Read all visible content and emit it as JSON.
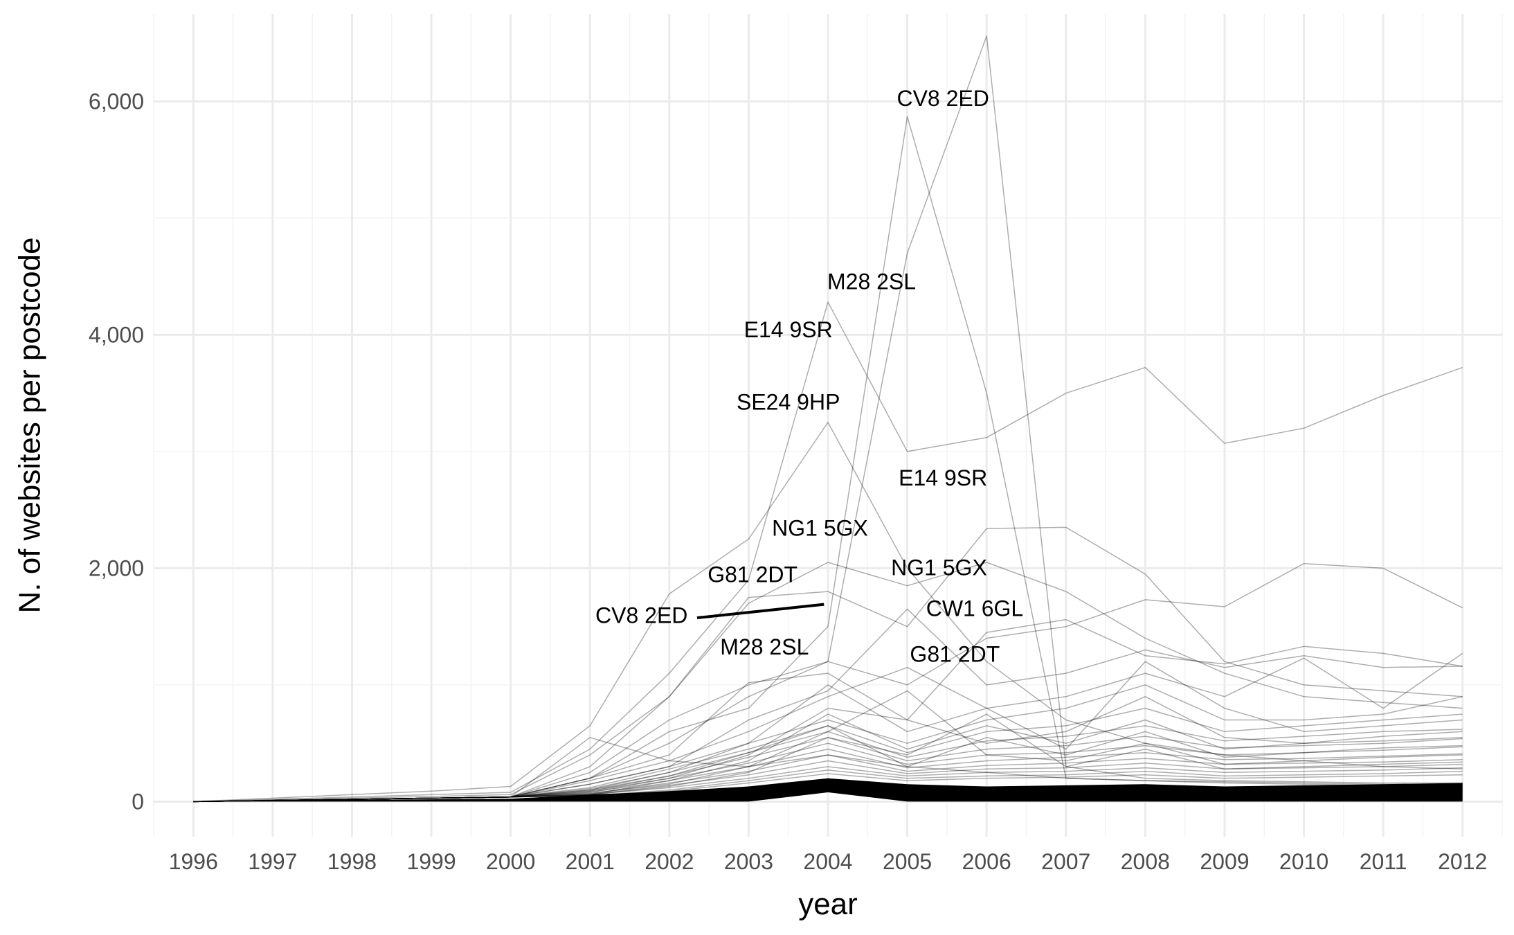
{
  "chart_data": {
    "type": "line",
    "title": "",
    "xlabel": "year",
    "ylabel": "N. of websites per postcode",
    "xlim": [
      1995.5,
      2012.5
    ],
    "ylim": [
      -300,
      6750
    ],
    "x_ticks": [
      1996,
      1997,
      1998,
      1999,
      2000,
      2001,
      2002,
      2003,
      2004,
      2005,
      2006,
      2007,
      2008,
      2009,
      2010,
      2011,
      2012
    ],
    "y_ticks": [
      {
        "value": 0,
        "label": "0"
      },
      {
        "value": 2000,
        "label": "2,000"
      },
      {
        "value": 4000,
        "label": "4,000"
      },
      {
        "value": 6000,
        "label": "6,000"
      }
    ],
    "grid": true,
    "legend": "none",
    "line_color": "#000000",
    "band": {
      "x": [
        1996,
        1997,
        1998,
        1999,
        2000,
        2001,
        2002,
        2003,
        2004,
        2005,
        2006,
        2007,
        2008,
        2009,
        2010,
        2011,
        2012
      ],
      "lower": [
        0,
        0,
        0,
        0,
        0,
        0,
        0,
        0,
        80,
        0,
        0,
        0,
        0,
        0,
        0,
        0,
        0
      ],
      "upper": [
        0,
        10,
        15,
        20,
        25,
        60,
        90,
        130,
        200,
        150,
        130,
        140,
        150,
        130,
        140,
        150,
        160
      ]
    },
    "series": [
      {
        "values": [
          0,
          30,
          60,
          90,
          130,
          650,
          1780,
          2250,
          3250,
          2000,
          1200,
          700,
          500,
          400,
          350,
          300,
          280
        ]
      },
      {
        "values": [
          0,
          20,
          40,
          60,
          80,
          450,
          1100,
          1900,
          4280,
          3000,
          3120,
          3500,
          3720,
          3070,
          3200,
          3480,
          3720
        ]
      },
      {
        "values": [
          0,
          10,
          20,
          30,
          40,
          200,
          600,
          800,
          1500,
          5870,
          3500,
          200,
          180,
          170,
          160,
          150,
          150
        ]
      },
      {
        "values": [
          0,
          10,
          20,
          30,
          40,
          250,
          700,
          1000,
          1200,
          4700,
          6560,
          300,
          200,
          180,
          170,
          160,
          160
        ]
      },
      {
        "values": [
          0,
          15,
          30,
          45,
          60,
          400,
          900,
          1700,
          2050,
          1850,
          2050,
          1800,
          1400,
          1100,
          900,
          850,
          800
        ]
      },
      {
        "values": [
          0,
          10,
          20,
          30,
          40,
          300,
          900,
          1750,
          1800,
          1500,
          2340,
          2350,
          1950,
          1200,
          1000,
          950,
          900
        ]
      },
      {
        "values": [
          0,
          10,
          20,
          30,
          40,
          200,
          500,
          900,
          1200,
          1000,
          1400,
          1500,
          1730,
          1670,
          2040,
          2000,
          1660
        ]
      },
      {
        "values": [
          0,
          10,
          20,
          30,
          40,
          550,
          350,
          300,
          400,
          300,
          250,
          200,
          180,
          160,
          150,
          140,
          130
        ]
      },
      {
        "values": [
          0,
          10,
          20,
          30,
          40,
          150,
          300,
          700,
          950,
          1650,
          1000,
          1100,
          1300,
          1150,
          1250,
          1150,
          1160
        ]
      },
      {
        "values": [
          0,
          10,
          20,
          30,
          40,
          200,
          400,
          1020,
          1100,
          700,
          1450,
          1560,
          1250,
          1180,
          1330,
          1270,
          1160
        ]
      },
      {
        "values": [
          0,
          10,
          20,
          30,
          40,
          180,
          350,
          600,
          900,
          1150,
          800,
          900,
          1100,
          900,
          1230,
          800,
          1270
        ]
      },
      {
        "values": [
          0,
          10,
          20,
          30,
          40,
          150,
          300,
          500,
          700,
          500,
          700,
          800,
          1000,
          700,
          700,
          750,
          900
        ]
      },
      {
        "values": [
          0,
          10,
          20,
          30,
          40,
          120,
          280,
          450,
          650,
          420,
          600,
          650,
          800,
          600,
          650,
          700,
          750
        ]
      },
      {
        "values": [
          0,
          10,
          20,
          30,
          40,
          110,
          250,
          420,
          600,
          380,
          520,
          560,
          650,
          520,
          560,
          600,
          620
        ]
      },
      {
        "values": [
          0,
          10,
          20,
          30,
          40,
          100,
          220,
          380,
          550,
          350,
          450,
          480,
          560,
          460,
          480,
          500,
          540
        ]
      },
      {
        "values": [
          0,
          10,
          20,
          30,
          40,
          90,
          200,
          330,
          500,
          320,
          400,
          420,
          480,
          400,
          420,
          440,
          470
        ]
      },
      {
        "values": [
          0,
          10,
          20,
          30,
          40,
          80,
          180,
          300,
          450,
          290,
          350,
          380,
          420,
          360,
          370,
          390,
          410
        ]
      },
      {
        "values": [
          0,
          10,
          20,
          30,
          40,
          70,
          160,
          260,
          400,
          260,
          310,
          330,
          370,
          320,
          330,
          340,
          360
        ]
      },
      {
        "values": [
          0,
          10,
          20,
          30,
          40,
          60,
          140,
          230,
          350,
          240,
          280,
          290,
          330,
          280,
          290,
          300,
          320
        ]
      },
      {
        "values": [
          0,
          10,
          20,
          30,
          40,
          60,
          120,
          200,
          300,
          220,
          250,
          260,
          290,
          250,
          260,
          270,
          290
        ]
      },
      {
        "values": [
          0,
          10,
          20,
          30,
          40,
          50,
          100,
          180,
          270,
          200,
          220,
          230,
          260,
          220,
          230,
          240,
          260
        ]
      },
      {
        "values": [
          0,
          10,
          20,
          30,
          40,
          50,
          90,
          160,
          240,
          180,
          200,
          210,
          230,
          200,
          210,
          220,
          230
        ]
      },
      {
        "values": [
          0,
          10,
          20,
          30,
          40,
          100,
          250,
          500,
          1000,
          600,
          800,
          450,
          1200,
          800,
          600,
          650,
          700
        ]
      },
      {
        "values": [
          0,
          10,
          20,
          30,
          40,
          80,
          200,
          400,
          800,
          700,
          500,
          600,
          900,
          550,
          500,
          560,
          600
        ]
      },
      {
        "values": [
          0,
          10,
          20,
          30,
          40,
          60,
          180,
          350,
          750,
          450,
          650,
          500,
          700,
          450,
          500,
          520,
          550
        ]
      },
      {
        "values": [
          0,
          10,
          20,
          30,
          40,
          90,
          220,
          420,
          650,
          300,
          550,
          400,
          600,
          380,
          420,
          460,
          480
        ]
      },
      {
        "values": [
          0,
          10,
          20,
          30,
          40,
          70,
          150,
          300,
          600,
          950,
          400,
          350,
          500,
          320,
          350,
          380,
          400
        ]
      },
      {
        "values": [
          0,
          10,
          20,
          30,
          40,
          60,
          130,
          250,
          550,
          400,
          750,
          300,
          450,
          280,
          300,
          320,
          340
        ]
      }
    ],
    "highlight_line": {
      "x": [
        2002.35,
        2003.95
      ],
      "y": [
        1575,
        1690
      ]
    },
    "annotations": [
      {
        "text": "CV8 2ED",
        "x": 2005.45,
        "y": 6010
      },
      {
        "text": "M28 2SL",
        "x": 2004.55,
        "y": 4440
      },
      {
        "text": "E14 9SR",
        "x": 2003.5,
        "y": 4030
      },
      {
        "text": "SE24 9HP",
        "x": 2003.5,
        "y": 3410
      },
      {
        "text": "E14 9SR",
        "x": 2005.45,
        "y": 2760
      },
      {
        "text": "NG1 5GX",
        "x": 2003.9,
        "y": 2330
      },
      {
        "text": "NG1 5GX",
        "x": 2005.4,
        "y": 1990
      },
      {
        "text": "G81 2DT",
        "x": 2003.05,
        "y": 1930
      },
      {
        "text": "CV8 2ED",
        "x": 2001.65,
        "y": 1580
      },
      {
        "text": "CW1 6GL",
        "x": 2005.85,
        "y": 1640
      },
      {
        "text": "M28 2SL",
        "x": 2003.2,
        "y": 1310
      },
      {
        "text": "G81 2DT",
        "x": 2005.6,
        "y": 1250
      }
    ]
  }
}
